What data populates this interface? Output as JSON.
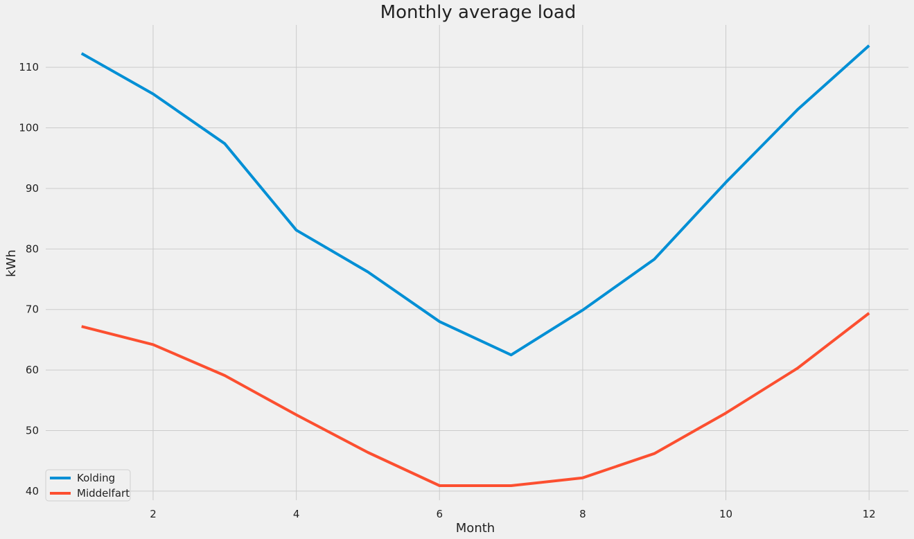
{
  "chart_data": {
    "type": "line",
    "title": "Monthly average load",
    "xlabel": "Month",
    "ylabel": "kWh",
    "xlim": [
      0.5,
      12.55
    ],
    "ylim": [
      38.5,
      117.0
    ],
    "xticks": [
      2,
      4,
      6,
      8,
      10,
      12
    ],
    "yticks": [
      40,
      50,
      60,
      70,
      80,
      90,
      100,
      110
    ],
    "grid": true,
    "legend_position": "lower-left",
    "x": [
      1,
      2,
      3,
      4,
      5,
      6,
      7,
      8,
      9,
      10,
      11,
      12
    ],
    "series": [
      {
        "name": "Kolding",
        "color": "#008fd5",
        "values": [
          112.3,
          105.6,
          97.4,
          83.1,
          76.2,
          68.0,
          62.5,
          69.9,
          78.3,
          91.0,
          103.0,
          113.6
        ]
      },
      {
        "name": "Middelfart",
        "color": "#fc4f30",
        "values": [
          67.2,
          64.2,
          59.1,
          52.6,
          46.4,
          40.9,
          40.9,
          42.2,
          46.2,
          52.9,
          60.3,
          69.4
        ]
      }
    ]
  }
}
